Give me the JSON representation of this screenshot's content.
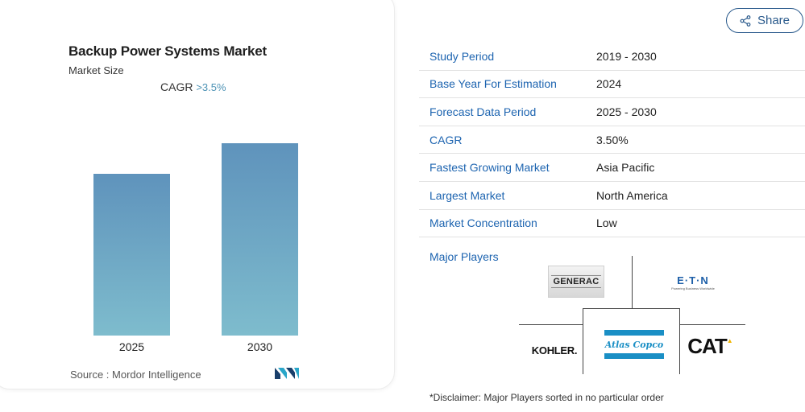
{
  "card": {
    "title": "Backup Power Systems Market",
    "subtitle": "Market Size",
    "cagr_label": "CAGR",
    "cagr_value": ">3.5%",
    "source": "Source :  Mordor Intelligence",
    "source_logo": "mordor-intelligence-logo"
  },
  "chart_data": {
    "type": "bar",
    "categories": [
      "2025",
      "2030"
    ],
    "values": [
      0.84,
      1.0
    ],
    "title": "",
    "xlabel": "",
    "ylabel": "",
    "ylim": [
      0,
      1.0
    ],
    "grid": false,
    "colors": [
      "#5f93bc",
      "#7ebccd"
    ]
  },
  "share": {
    "label": "Share",
    "icon": "share-icon",
    "color": "#2a5a8c"
  },
  "info_table": {
    "rows": [
      {
        "key": "Study Period",
        "value": "2019 - 2030"
      },
      {
        "key": "Base Year For Estimation",
        "value": "2024"
      },
      {
        "key": "Forecast Data Period",
        "value": "2025 - 2030"
      },
      {
        "key": "CAGR",
        "value": "3.50%"
      },
      {
        "key": "Fastest Growing Market",
        "value": "Asia Pacific"
      },
      {
        "key": "Largest Market",
        "value": "North America"
      },
      {
        "key": "Market Concentration",
        "value": "Low"
      }
    ],
    "key_color": "#1d64b0"
  },
  "players": {
    "label": "Major Players",
    "logos": {
      "generac": "GENERAC",
      "eaton_main": "E·T·N",
      "eaton_tagline": "Powering Business Worldwide",
      "kohler": "KOHLER.",
      "atlas": "Atlas Copco",
      "cat": "CAT"
    }
  },
  "disclaimer": "*Disclaimer: Major Players sorted in no particular order"
}
